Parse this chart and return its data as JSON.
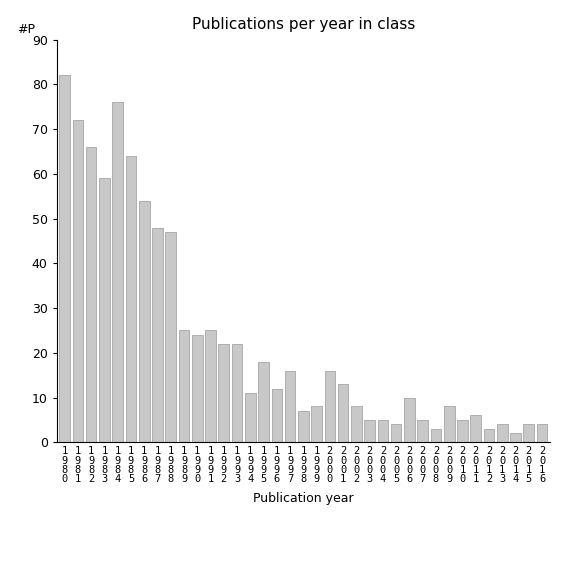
{
  "title": "Publications per year in class",
  "xlabel": "Publication year",
  "ylabel": "#P",
  "ylim": [
    0,
    90
  ],
  "yticks": [
    0,
    10,
    20,
    30,
    40,
    50,
    60,
    70,
    80,
    90
  ],
  "bar_color": "#c8c8c8",
  "bar_edgecolor": "#999999",
  "years": [
    1980,
    1981,
    1982,
    1983,
    1984,
    1985,
    1986,
    1987,
    1988,
    1989,
    1990,
    1991,
    1992,
    1993,
    1994,
    1995,
    1996,
    1997,
    1998,
    1999,
    2000,
    2001,
    2002,
    2003,
    2004,
    2005,
    2006,
    2007,
    2008,
    2009,
    2010,
    2011,
    2012,
    2013,
    2014,
    2015,
    2016
  ],
  "values": [
    82,
    72,
    66,
    59,
    76,
    64,
    54,
    48,
    47,
    25,
    24,
    25,
    22,
    22,
    11,
    18,
    12,
    16,
    7,
    8,
    16,
    13,
    8,
    5,
    5,
    4,
    10,
    5,
    3,
    8,
    5,
    6,
    3,
    4,
    2,
    4,
    4
  ]
}
